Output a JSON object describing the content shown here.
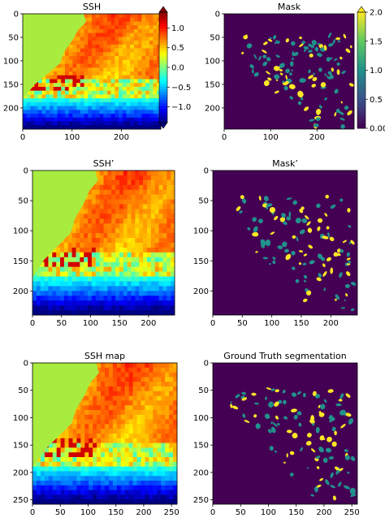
{
  "chart_data": [
    {
      "type": "heatmap",
      "variant": "ssh",
      "title": "SSH",
      "x_ticks": [
        0,
        100,
        200
      ],
      "y_ticks": [
        0,
        50,
        100,
        150,
        200
      ],
      "xlim": [
        0,
        280
      ],
      "ylim": [
        245,
        0
      ],
      "colorbar": {
        "ticks": [
          1.0,
          0.5,
          0.0,
          -0.5,
          -1.0
        ],
        "labels": [
          "1.0",
          "0.5",
          "0.0",
          "−0.5",
          "−1.0"
        ],
        "range": [
          -1.4,
          1.4
        ],
        "colormap": "jet",
        "extend": "both"
      }
    },
    {
      "type": "heatmap",
      "variant": "mask",
      "title": "Mask",
      "x_ticks": [
        0,
        100,
        200
      ],
      "y_ticks": [
        0,
        50,
        100,
        150,
        200
      ],
      "xlim": [
        0,
        280
      ],
      "ylim": [
        245,
        0
      ],
      "colorbar": {
        "ticks": [
          2.0,
          1.5,
          1.0,
          0.5,
          0.0
        ],
        "labels": [
          "2.0",
          "1.5",
          "1.0",
          "0.5",
          "0.00"
        ],
        "range": [
          0,
          2
        ],
        "colormap": "viridis",
        "extend": "max"
      },
      "classes": [
        0,
        1,
        2
      ]
    },
    {
      "type": "heatmap",
      "variant": "ssh",
      "title": "SSH’",
      "x_ticks": [
        0,
        50,
        100,
        150,
        200
      ],
      "y_ticks": [
        0,
        50,
        100,
        150,
        200
      ],
      "xlim": [
        0,
        245
      ],
      "ylim": [
        240,
        0
      ]
    },
    {
      "type": "heatmap",
      "variant": "mask",
      "title": "Mask’",
      "x_ticks": [
        0,
        50,
        100,
        150,
        200
      ],
      "y_ticks": [
        0,
        50,
        100,
        150,
        200
      ],
      "xlim": [
        0,
        245
      ],
      "ylim": [
        240,
        0
      ]
    },
    {
      "type": "heatmap",
      "variant": "ssh",
      "title": "SSH map",
      "x_ticks": [
        0,
        50,
        100,
        150,
        200,
        250
      ],
      "y_ticks": [
        0,
        50,
        100,
        150,
        200,
        250
      ],
      "xlim": [
        0,
        260
      ],
      "ylim": [
        258,
        0
      ]
    },
    {
      "type": "heatmap",
      "variant": "mask",
      "title": "Ground Truth segmentation",
      "x_ticks": [
        0,
        50,
        100,
        150,
        200,
        250
      ],
      "y_ticks": [
        0,
        50,
        100,
        150,
        200,
        250
      ],
      "xlim": [
        0,
        260
      ],
      "ylim": [
        258,
        0
      ]
    }
  ],
  "colors": {
    "land": "#a8ec40",
    "mask_background": "#440154",
    "mask_class_1": "#21918c",
    "mask_class_2": "#fde725"
  }
}
